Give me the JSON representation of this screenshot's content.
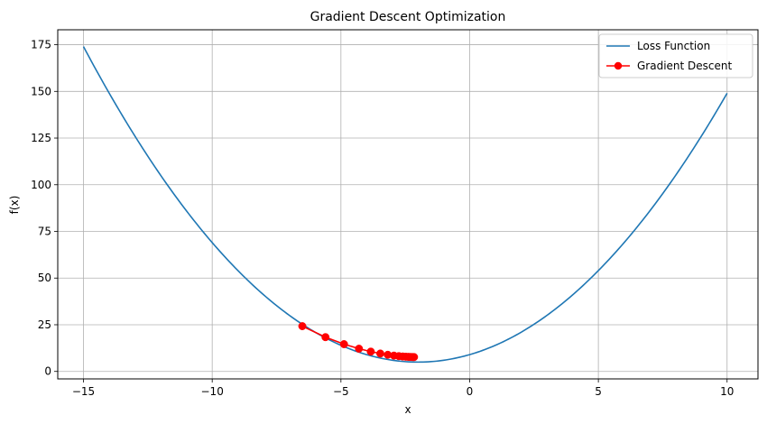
{
  "chart_data": {
    "type": "line",
    "title": "Gradient Descent Optimization",
    "xlabel": "x",
    "ylabel": "f(x)",
    "xlim": [
      -16,
      11.2
    ],
    "ylim": [
      -4,
      183
    ],
    "xticks": [
      -15,
      -10,
      -5,
      0,
      5,
      10
    ],
    "xtick_labels": [
      "−15",
      "−10",
      "−5",
      "0",
      "5",
      "10"
    ],
    "yticks": [
      0,
      25,
      50,
      75,
      100,
      125,
      150,
      175
    ],
    "ytick_labels": [
      "0",
      "25",
      "50",
      "75",
      "100",
      "125",
      "150",
      "175"
    ],
    "grid": true,
    "legend_position": "top-right",
    "series": [
      {
        "name": "Loss Function",
        "color": "#1f77b4",
        "marker": "none",
        "x": [
          -15,
          -14,
          -13,
          -12,
          -11,
          -10,
          -9,
          -8,
          -7,
          -6,
          -5,
          -4,
          -3,
          -2,
          -1,
          0,
          1,
          2,
          3,
          4,
          5,
          6,
          7,
          8,
          9,
          10
        ],
        "y": [
          174,
          149,
          126,
          105,
          86,
          69,
          54,
          41,
          30,
          21,
          14,
          9,
          6,
          5,
          6,
          9,
          14,
          21,
          30,
          41,
          54,
          69,
          86,
          105,
          126,
          149
        ]
      },
      {
        "name": "Gradient Descent",
        "color": "#ff0000",
        "marker": "circle",
        "x": [
          -6.5,
          -5.6,
          -4.88,
          -4.3,
          -3.84,
          -3.47,
          -3.18,
          -2.94,
          -2.75,
          -2.6,
          -2.48,
          -2.38,
          -2.31,
          -2.25,
          -2.2,
          -2.16
        ],
        "y": [
          24.25,
          18.36,
          14.6,
          12.18,
          10.61,
          9.58,
          8.91,
          8.47,
          8.19,
          8.0,
          7.88,
          7.8,
          7.75,
          7.72,
          7.7,
          7.69
        ]
      }
    ]
  }
}
